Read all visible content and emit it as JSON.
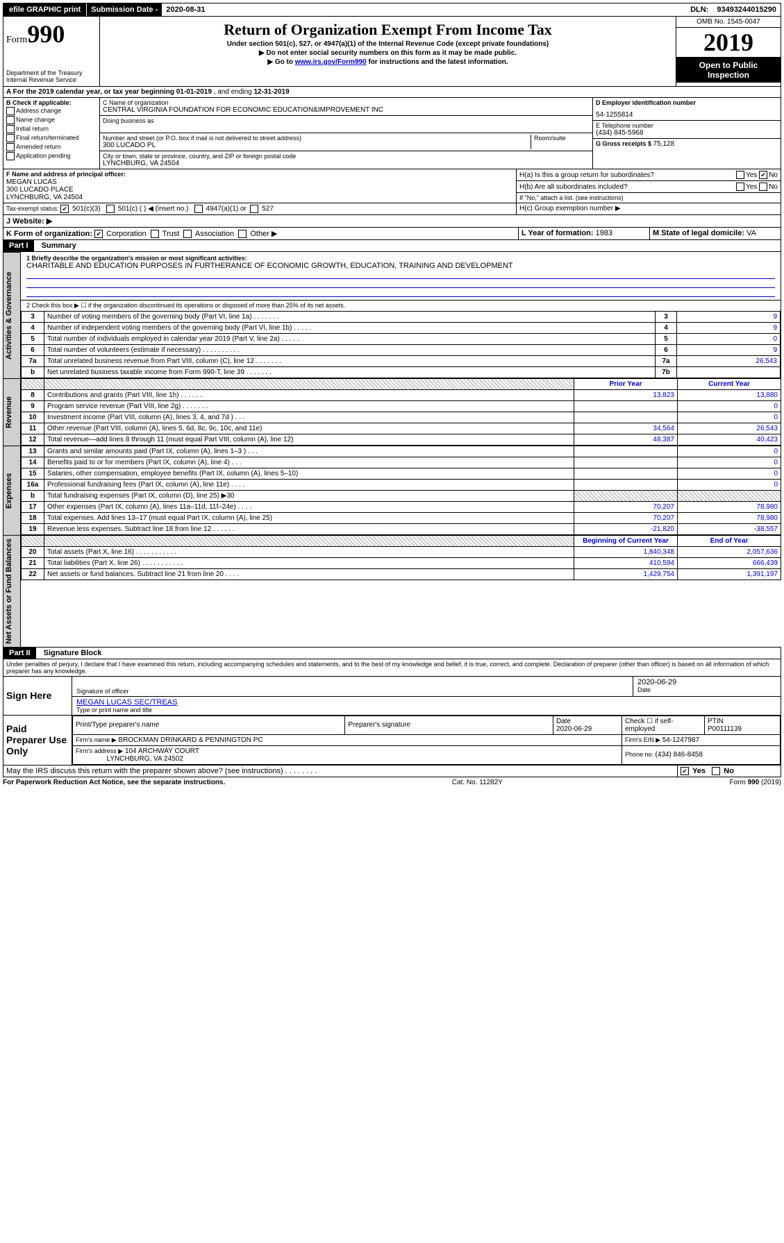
{
  "topbar": {
    "efile": "efile GRAPHIC print",
    "sub_label": "Submission Date - ",
    "sub_date": "2020-08-31",
    "dln_label": "DLN: ",
    "dln": "93493244015290"
  },
  "form": {
    "form_word": "Form",
    "form_num": "990",
    "dept1": "Department of the Treasury",
    "dept2": "Internal Revenue Service",
    "title": "Return of Organization Exempt From Income Tax",
    "subtitle": "Under section 501(c), 527, or 4947(a)(1) of the Internal Revenue Code (except private foundations)",
    "note1": "▶ Do not enter social security numbers on this form as it may be made public.",
    "note2_pre": "▶ Go to ",
    "note2_link": "www.irs.gov/Form990",
    "note2_post": " for instructions and the latest information.",
    "omb": "OMB No. 1545-0047",
    "year": "2019",
    "open": "Open to Public Inspection"
  },
  "period": {
    "line_a_pre": "A For the 2019 calendar year, or tax year beginning ",
    "begin": "01-01-2019",
    "mid": " , and ending ",
    "end": "12-31-2019"
  },
  "boxB": {
    "header": "B Check if applicable:",
    "items": [
      "Address change",
      "Name change",
      "Initial return",
      "Final return/terminated",
      "Amended return",
      "Application pending"
    ]
  },
  "boxC": {
    "label_name": "C Name of organization",
    "org_name": "CENTRAL VIRGINIA FOUNDATION FOR ECONOMIC EDUCATION&IMPROVEMENT INC",
    "dba_label": "Doing business as",
    "addr_label": "Number and street (or P.O. box if mail is not delivered to street address)",
    "room_label": "Room/suite",
    "addr": "300 LUCADO PL",
    "city_label": "City or town, state or province, country, and ZIP or foreign postal code",
    "city": "LYNCHBURG, VA  24504"
  },
  "boxD": {
    "label": "D Employer identification number",
    "ein": "54-1255814"
  },
  "boxE": {
    "label": "E Telephone number",
    "phone": "(434) 845-5968"
  },
  "boxG": {
    "label": "G Gross receipts $ ",
    "val": "75,128"
  },
  "boxF": {
    "label": "F Name and address of principal officer:",
    "name": "MEGAN LUCAS",
    "addr": "300 LUCADO PLACE",
    "city": "LYNCHBURG, VA  24504"
  },
  "boxH": {
    "a_label": "H(a)  Is this a group return for subordinates?",
    "b_label": "H(b)  Are all subordinates included?",
    "b_note": "If \"No,\" attach a list. (see instructions)",
    "c_label": "H(c)  Group exemption number ▶",
    "yes": "Yes",
    "no": "No"
  },
  "taxexempt": {
    "label": "Tax-exempt status:",
    "opt1": "501(c)(3)",
    "opt2": "501(c) (  ) ◀ (insert no.)",
    "opt3": "4947(a)(1) or",
    "opt4": "527"
  },
  "boxJ": {
    "label": "J   Website: ▶"
  },
  "boxK": {
    "label": "K Form of organization:",
    "opts": [
      "Corporation",
      "Trust",
      "Association",
      "Other ▶"
    ]
  },
  "boxL": {
    "label": "L Year of formation: ",
    "val": "1983"
  },
  "boxM": {
    "label": "M State of legal domicile: ",
    "val": "VA"
  },
  "part1": {
    "header": "Part I",
    "title": "Summary",
    "line1_label": "1  Briefly describe the organization's mission or most significant activities:",
    "line1_text": "CHARITABLE AND EDUCATION PURPOSES IN FURTHERANCE OF ECONOMIC GROWTH, EDUCATION, TRAINING AND DEVELOPMENT",
    "line2": "2   Check this box ▶ ☐  if the organization discontinued its operations or disposed of more than 25% of its net assets.",
    "tabs": {
      "ag": "Activities & Governance",
      "rev": "Revenue",
      "exp": "Expenses",
      "net": "Net Assets or Fund Balances"
    },
    "numrows": [
      {
        "n": "3",
        "t": "Number of voting members of the governing body (Part VI, line 1a)   .    .    .    .    .    .    .",
        "col": "3",
        "v": "9"
      },
      {
        "n": "4",
        "t": "Number of independent voting members of the governing body (Part VI, line 1b)  .    .    .    .    .",
        "col": "4",
        "v": "9"
      },
      {
        "n": "5",
        "t": "Total number of individuals employed in calendar year 2019 (Part V, line 2a)   .    .    .    .    .",
        "col": "5",
        "v": "0"
      },
      {
        "n": "6",
        "t": "Total number of volunteers (estimate if necessary)   .    .    .    .    .    .    .    .    .    .",
        "col": "6",
        "v": "9"
      },
      {
        "n": "7a",
        "t": "Total unrelated business revenue from Part VIII, column (C), line 12  .    .    .    .    .    .    .",
        "col": "7a",
        "v": "26,543"
      },
      {
        "n": "b",
        "t": "Net unrelated business taxable income from Form 990-T, line 39   .    .    .    .    .    .    .",
        "col": "7b",
        "v": ""
      }
    ],
    "colhdr_prior": "Prior Year",
    "colhdr_curr": "Current Year",
    "revrows": [
      {
        "n": "8",
        "t": "Contributions and grants (Part VIII, line 1h)   .    .    .    .    .    .",
        "p": "13,823",
        "c": "13,880"
      },
      {
        "n": "9",
        "t": "Program service revenue (Part VIII, line 2g)  .    .    .    .    .    .    .",
        "p": "",
        "c": "0"
      },
      {
        "n": "10",
        "t": "Investment income (Part VIII, column (A), lines 3, 4, and 7d )   .    .    .",
        "p": "",
        "c": "0"
      },
      {
        "n": "11",
        "t": "Other revenue (Part VIII, column (A), lines 5, 6d, 8c, 9c, 10c, and 11e)",
        "p": "34,564",
        "c": "26,543"
      },
      {
        "n": "12",
        "t": "Total revenue—add lines 8 through 11 (must equal Part VIII, column (A), line 12)",
        "p": "48,387",
        "c": "40,423"
      }
    ],
    "exprows": [
      {
        "n": "13",
        "t": "Grants and similar amounts paid (Part IX, column (A), lines 1–3 )  .    .    .",
        "p": "",
        "c": "0"
      },
      {
        "n": "14",
        "t": "Benefits paid to or for members (Part IX, column (A), line 4)  .    .    .",
        "p": "",
        "c": "0"
      },
      {
        "n": "15",
        "t": "Salaries, other compensation, employee benefits (Part IX, column (A), lines 5–10)",
        "p": "",
        "c": "0"
      },
      {
        "n": "16a",
        "t": "Professional fundraising fees (Part IX, column (A), line 11e)  .    .    .    .",
        "p": "",
        "c": "0"
      },
      {
        "n": "b",
        "t": "Total fundraising expenses (Part IX, column (D), line 25) ▶30",
        "p": "HATCH",
        "c": "HATCH"
      },
      {
        "n": "17",
        "t": "Other expenses (Part IX, column (A), lines 11a–11d, 11f–24e)  .    .    .    .",
        "p": "70,207",
        "c": "78,980"
      },
      {
        "n": "18",
        "t": "Total expenses. Add lines 13–17 (must equal Part IX, column (A), line 25)",
        "p": "70,207",
        "c": "78,980"
      },
      {
        "n": "19",
        "t": "Revenue less expenses. Subtract line 18 from line 12  .    .    .    .    .    .",
        "p": "-21,820",
        "c": "-38,557"
      }
    ],
    "colhdr_begin": "Beginning of Current Year",
    "colhdr_end": "End of Year",
    "netrows": [
      {
        "n": "20",
        "t": "Total assets (Part X, line 16)  .    .    .    .    .    .    .    .    .    .    .",
        "p": "1,840,348",
        "c": "2,057,636"
      },
      {
        "n": "21",
        "t": "Total liabilities (Part X, line 26)  .    .    .    .    .    .    .    .    .    .    .",
        "p": "410,594",
        "c": "666,439"
      },
      {
        "n": "22",
        "t": "Net assets or fund balances. Subtract line 21 from line 20  .    .    .    .",
        "p": "1,429,754",
        "c": "1,391,197"
      }
    ]
  },
  "part2": {
    "header": "Part II",
    "title": "Signature Block",
    "perjury": "Under penalties of perjury, I declare that I have examined this return, including accompanying schedules and statements, and to the best of my knowledge and belief, it is true, correct, and complete. Declaration of preparer (other than officer) is based on all information of which preparer has any knowledge.",
    "sign_here": "Sign Here",
    "sig_officer": "Signature of officer",
    "date": "Date",
    "date_val": "2020-06-29",
    "officer_name": "MEGAN LUCAS SEC/TREAS",
    "type_name": "Type or print name and title",
    "paid": "Paid Preparer Use Only",
    "prep_name_hdr": "Print/Type preparer's name",
    "prep_sig_hdr": "Preparer's signature",
    "prep_date_hdr": "Date",
    "prep_date": "2020-06-29",
    "check_self": "Check ☐ if self-employed",
    "ptin_hdr": "PTIN",
    "ptin": "P00111139",
    "firm_name_lbl": "Firm's name    ▶",
    "firm_name": "BROCKMAN DRINKARD & PENNINGTON PC",
    "firm_ein_lbl": "Firm's EIN ▶ ",
    "firm_ein": "54-1247987",
    "firm_addr_lbl": "Firm's address ▶",
    "firm_addr1": "104 ARCHWAY COURT",
    "firm_addr2": "LYNCHBURG, VA  24502",
    "phone_lbl": "Phone no. ",
    "phone": "(434) 846-8458",
    "discuss": "May the IRS discuss this return with the preparer shown above? (see instructions)   .    .    .    .    .    .    .    .",
    "yes": "Yes",
    "no": "No"
  },
  "footer": {
    "left": "For Paperwork Reduction Act Notice, see the separate instructions.",
    "mid": "Cat. No. 11282Y",
    "right": "Form 990 (2019)"
  }
}
